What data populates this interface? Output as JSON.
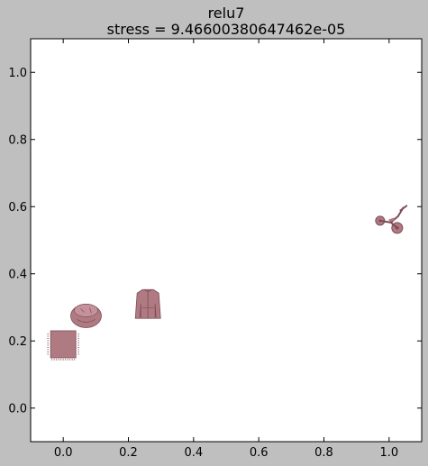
{
  "chart_data": {
    "type": "scatter",
    "title": "relu7",
    "subtitle": "stress = 9.46600380647462e-05",
    "xlabel": "",
    "ylabel": "",
    "xlim": [
      -0.1,
      1.1
    ],
    "ylim": [
      -0.1,
      1.1
    ],
    "grid": false,
    "x_ticks": [
      "0.0",
      "0.2",
      "0.4",
      "0.6",
      "0.8",
      "1.0"
    ],
    "y_ticks": [
      "0.0",
      "0.2",
      "0.4",
      "0.6",
      "0.8",
      "1.0"
    ],
    "points": [
      {
        "name": "cushion-thumbnail",
        "x": 0.0,
        "y": 0.19
      },
      {
        "name": "beanbag-thumbnail",
        "x": 0.07,
        "y": 0.28
      },
      {
        "name": "jacket-thumbnail",
        "x": 0.26,
        "y": 0.31
      },
      {
        "name": "tricycle-thumbnail",
        "x": 1.0,
        "y": 0.55
      }
    ],
    "colors": {
      "background": "#bfbfbf",
      "plot_area": "#ffffff",
      "thumbnail": "#b07a83"
    }
  }
}
